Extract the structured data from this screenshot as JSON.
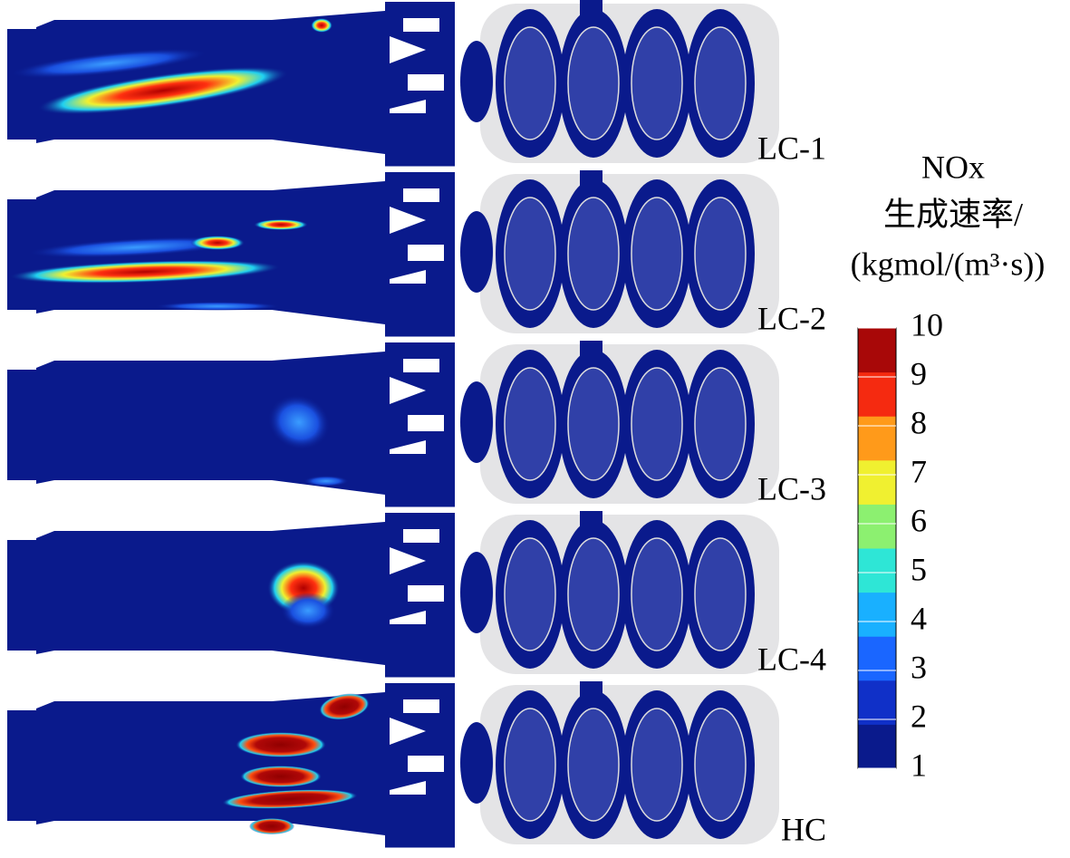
{
  "cases": [
    "LC-1",
    "LC-2",
    "LC-3",
    "LC-4",
    "HC"
  ],
  "colorbar": {
    "title": [
      "NOx",
      "生成速率/",
      "(kgmol/(m³·s))"
    ],
    "range": [
      1,
      10
    ],
    "ticks": [
      1,
      2,
      3,
      4,
      5,
      6,
      7,
      8,
      9,
      10
    ],
    "colors": [
      "#0a1a8c",
      "#1030c8",
      "#1a66ff",
      "#19b0ff",
      "#2ee6d6",
      "#8cf070",
      "#f0f030",
      "#ff9a1a",
      "#f52a10",
      "#a80808"
    ]
  }
}
